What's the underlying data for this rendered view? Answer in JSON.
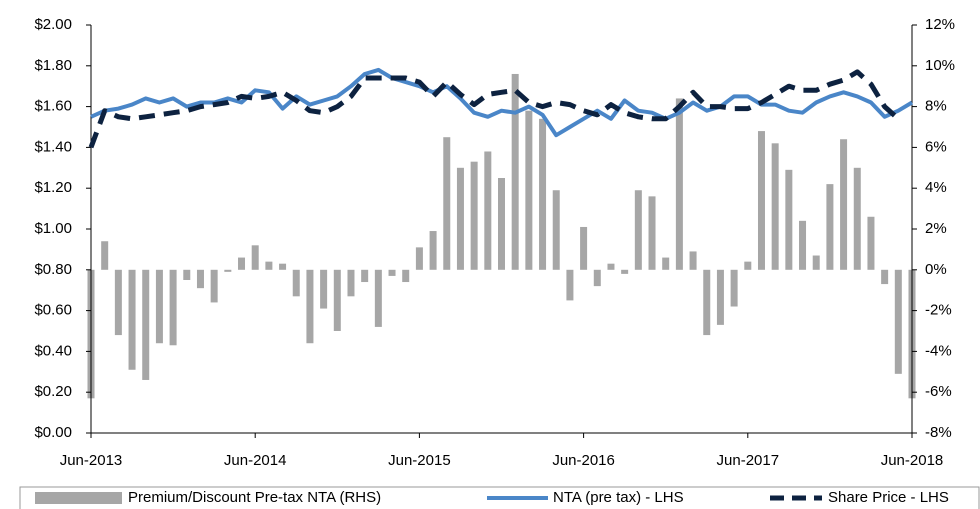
{
  "chart_data": {
    "type": "bar_line",
    "categories": [
      "Jun-2013",
      null,
      null,
      null,
      null,
      null,
      null,
      null,
      null,
      null,
      null,
      null,
      "Jun-2014",
      null,
      null,
      null,
      null,
      null,
      null,
      null,
      null,
      null,
      null,
      null,
      "Jun-2015",
      null,
      null,
      null,
      null,
      null,
      null,
      null,
      null,
      null,
      null,
      null,
      "Jun-2016",
      null,
      null,
      null,
      null,
      null,
      null,
      null,
      null,
      null,
      null,
      null,
      "Jun-2017",
      null,
      null,
      null,
      null,
      null,
      null,
      null,
      null,
      null,
      null,
      null,
      "Jun-2018"
    ],
    "series": [
      {
        "name": "Premium/Discount Pre-tax NTA (RHS)",
        "type": "bar",
        "axis": "y2",
        "color": "#a6a6a6",
        "values": [
          -6.3,
          1.4,
          -3.2,
          -4.9,
          -5.4,
          -3.6,
          -3.7,
          -0.5,
          -0.9,
          -1.6,
          -0.1,
          0.6,
          1.2,
          0.4,
          0.3,
          -1.3,
          -3.6,
          -1.9,
          -3.0,
          -1.3,
          -0.6,
          -2.8,
          -0.3,
          -0.6,
          1.1,
          1.9,
          6.5,
          5.0,
          5.3,
          5.8,
          4.5,
          9.6,
          7.8,
          7.4,
          3.9,
          -1.5,
          2.1,
          -0.8,
          0.3,
          -0.2,
          3.9,
          3.6,
          0.6,
          8.4,
          0.9,
          -3.2,
          -2.7,
          -1.8,
          0.4,
          6.8,
          6.2,
          4.9,
          2.4,
          0.7,
          4.2,
          6.4,
          5.0,
          2.6,
          -0.7,
          -5.1,
          -6.3
        ]
      },
      {
        "name": "NTA (pre tax) - LHS",
        "type": "line",
        "axis": "y",
        "color": "#4a86c8",
        "values": [
          1.55,
          1.58,
          1.59,
          1.61,
          1.64,
          1.62,
          1.64,
          1.6,
          1.62,
          1.62,
          1.64,
          1.62,
          1.68,
          1.67,
          1.59,
          1.65,
          1.61,
          1.63,
          1.65,
          1.7,
          1.76,
          1.78,
          1.74,
          1.72,
          1.7,
          1.67,
          1.7,
          1.64,
          1.57,
          1.55,
          1.58,
          1.57,
          1.6,
          1.56,
          1.46,
          1.5,
          1.54,
          1.58,
          1.54,
          1.63,
          1.58,
          1.57,
          1.54,
          1.57,
          1.62,
          1.58,
          1.6,
          1.65,
          1.65,
          1.61,
          1.61,
          1.58,
          1.57,
          1.62,
          1.65,
          1.67,
          1.65,
          1.62,
          1.55,
          1.58,
          1.62
        ]
      },
      {
        "name": "Share Price - LHS",
        "type": "dashed",
        "axis": "y",
        "color": "#0d2240",
        "values": [
          1.4,
          1.58,
          1.55,
          1.54,
          1.55,
          1.56,
          1.57,
          1.58,
          1.6,
          1.61,
          1.62,
          1.65,
          1.64,
          1.65,
          1.67,
          1.63,
          1.58,
          1.57,
          1.6,
          1.65,
          1.74,
          1.74,
          1.74,
          1.74,
          1.72,
          1.65,
          1.72,
          1.66,
          1.61,
          1.66,
          1.67,
          1.68,
          1.62,
          1.6,
          1.62,
          1.61,
          1.58,
          1.56,
          1.61,
          1.57,
          1.55,
          1.54,
          1.54,
          1.6,
          1.67,
          1.6,
          1.6,
          1.59,
          1.59,
          1.62,
          1.66,
          1.7,
          1.68,
          1.68,
          1.71,
          1.73,
          1.77,
          1.71,
          1.6,
          1.54,
          null
        ]
      }
    ],
    "ylim": [
      0,
      2
    ],
    "yticks": [
      {
        "value": 0,
        "label": "$0.00"
      },
      {
        "value": 0.2,
        "label": "$0.20"
      },
      {
        "value": 0.4,
        "label": "$0.40"
      },
      {
        "value": 0.6,
        "label": "$0.60"
      },
      {
        "value": 0.8,
        "label": "$0.80"
      },
      {
        "value": 1,
        "label": "$1.00"
      },
      {
        "value": 1.2,
        "label": "$1.20"
      },
      {
        "value": 1.4,
        "label": "$1.40"
      },
      {
        "value": 1.6,
        "label": "$1.60"
      },
      {
        "value": 1.8,
        "label": "$1.80"
      },
      {
        "value": 2,
        "label": "$2.00"
      }
    ],
    "y2lim": [
      -8,
      12
    ],
    "y2ticks": [
      {
        "value": -8,
        "label": "-8%"
      },
      {
        "value": -6,
        "label": "-6%"
      },
      {
        "value": -4,
        "label": "-4%"
      },
      {
        "value": -2,
        "label": "-2%"
      },
      {
        "value": 0,
        "label": "0%"
      },
      {
        "value": 2,
        "label": "2%"
      },
      {
        "value": 4,
        "label": "4%"
      },
      {
        "value": 6,
        "label": "6%"
      },
      {
        "value": 8,
        "label": "8%"
      },
      {
        "value": 10,
        "label": "10%"
      },
      {
        "value": 12,
        "label": "12%"
      }
    ],
    "legend": "bottom"
  }
}
